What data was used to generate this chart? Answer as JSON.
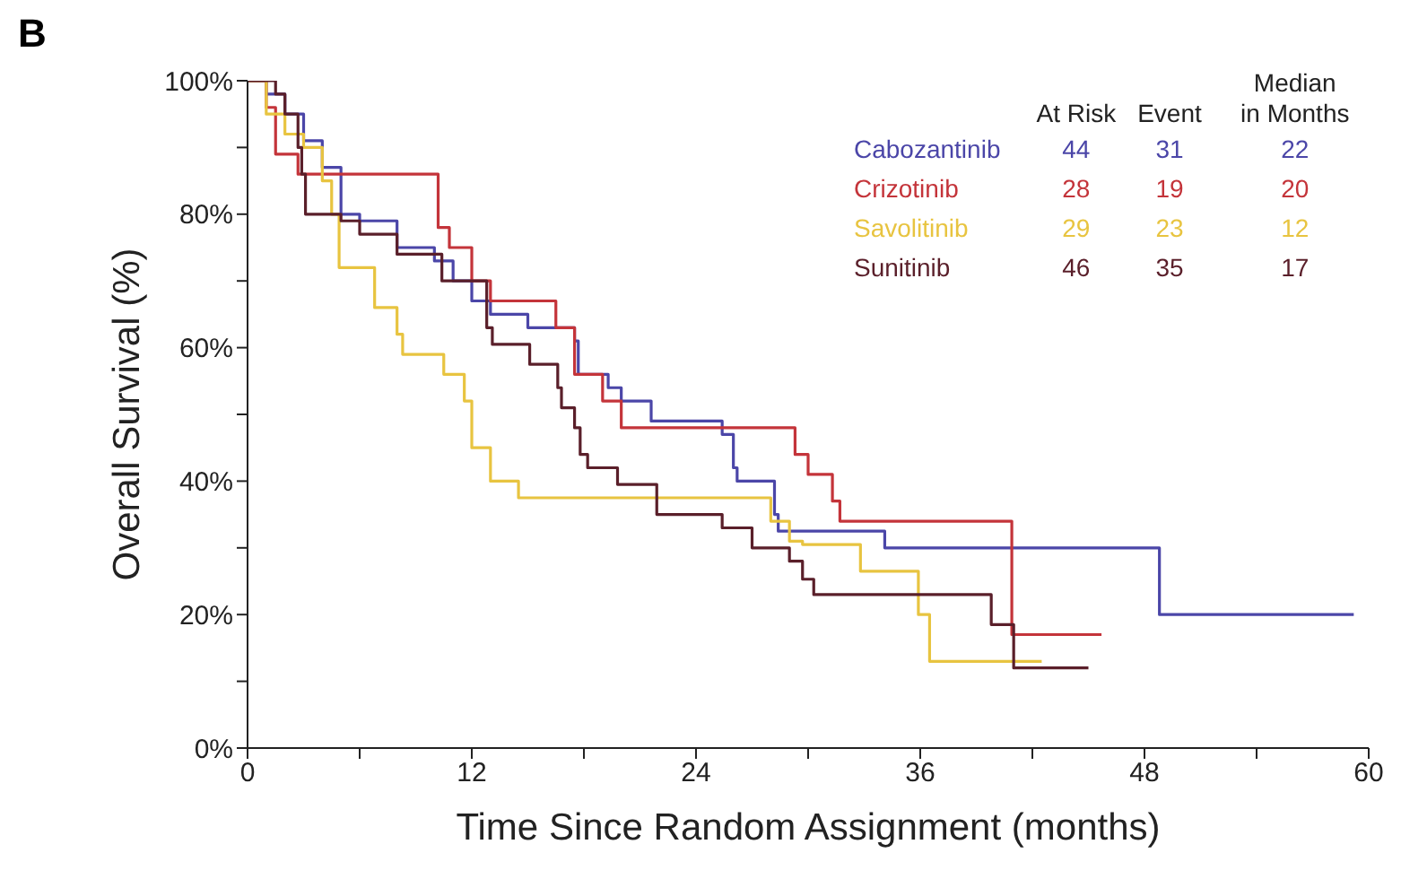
{
  "chart_data": {
    "type": "step",
    "title": "B",
    "xlabel": "Time Since Random Assignment (months)",
    "ylabel": "Overall Survival (%)",
    "xlim": [
      0,
      60
    ],
    "ylim": [
      0,
      100
    ],
    "xticks": [
      0,
      {
        "value": 6,
        "label": null
      },
      12,
      {
        "value": 18,
        "label": null
      },
      24,
      {
        "value": 30,
        "label": null
      },
      36,
      {
        "value": 42,
        "label": null
      },
      48,
      {
        "value": 54,
        "label": null
      },
      60
    ],
    "yticks": [
      {
        "value": 0,
        "label": "0%"
      },
      {
        "value": 10,
        "label": null
      },
      {
        "value": 20,
        "label": "20%"
      },
      {
        "value": 30,
        "label": null
      },
      {
        "value": 40,
        "label": "40%"
      },
      {
        "value": 50,
        "label": null
      },
      {
        "value": 60,
        "label": "60%"
      },
      {
        "value": 70,
        "label": null
      },
      {
        "value": 80,
        "label": "80%"
      },
      {
        "value": 90,
        "label": null
      },
      {
        "value": 100,
        "label": "100%"
      }
    ],
    "legend": "top right",
    "marker": "none",
    "annotations": [
      "At Risk",
      "Event",
      "Median in Months",
      "44",
      "31",
      "22",
      "28",
      "19",
      "20",
      "29",
      "23",
      "12",
      "46",
      "35",
      "17"
    ],
    "series": [
      {
        "name": "Cabozantinib",
        "color": "#4b46a8",
        "x": [
          0,
          1,
          2,
          3,
          4,
          5,
          6,
          8,
          10,
          11,
          12,
          13,
          15,
          17.5,
          17.7,
          19.3,
          20,
          21.6,
          25.4,
          26,
          26.2,
          28.2,
          28.4,
          34.1,
          48.8,
          59.2
        ],
        "values": [
          100,
          98,
          95,
          91,
          87,
          80,
          79,
          75,
          73,
          70,
          67,
          65,
          63,
          61,
          56,
          54,
          52,
          49,
          47,
          42,
          40,
          35,
          32.5,
          30,
          20,
          20
        ]
      },
      {
        "name": "Crizotinib",
        "color": "#c4343a",
        "x": [
          0,
          1,
          1.5,
          2.7,
          10.2,
          10.8,
          12,
          13,
          16.5,
          17.5,
          19,
          20,
          29.3,
          30,
          31.3,
          31.7,
          40.9,
          45.7
        ],
        "values": [
          100,
          96,
          89,
          86,
          78,
          75,
          70,
          67,
          63,
          56,
          52,
          48,
          44,
          41,
          37,
          34,
          17,
          17
        ]
      },
      {
        "name": "Savolitinib",
        "color": "#e8c440",
        "x": [
          0,
          1,
          2,
          3,
          4,
          4.5,
          4.9,
          6.8,
          8,
          8.3,
          10.5,
          11.6,
          12,
          13,
          14.5,
          28,
          29,
          29.7,
          32.8,
          35.9,
          36.5,
          42.5
        ],
        "values": [
          100,
          95,
          92,
          90,
          85,
          80,
          72,
          66,
          62,
          59,
          56,
          52,
          45,
          40,
          37.5,
          34,
          31,
          30.5,
          26.5,
          20,
          13,
          13
        ]
      },
      {
        "name": "Sunitinib",
        "color": "#5a1f2a",
        "x": [
          0,
          1.5,
          2,
          2.7,
          2.9,
          3.1,
          5,
          6,
          8,
          10.4,
          12.8,
          13.1,
          15.1,
          16.6,
          16.8,
          17.5,
          17.8,
          18.2,
          19.8,
          21.9,
          25.4,
          27,
          29,
          29.7,
          30.3,
          39.8,
          41,
          45
        ],
        "values": [
          100,
          98,
          95,
          90,
          86,
          80,
          79,
          77,
          74,
          70,
          63,
          60.5,
          57.5,
          54,
          51,
          48,
          44,
          42,
          39.5,
          35,
          33,
          30,
          28,
          25.3,
          23,
          18.5,
          12,
          12
        ]
      }
    ]
  }
}
